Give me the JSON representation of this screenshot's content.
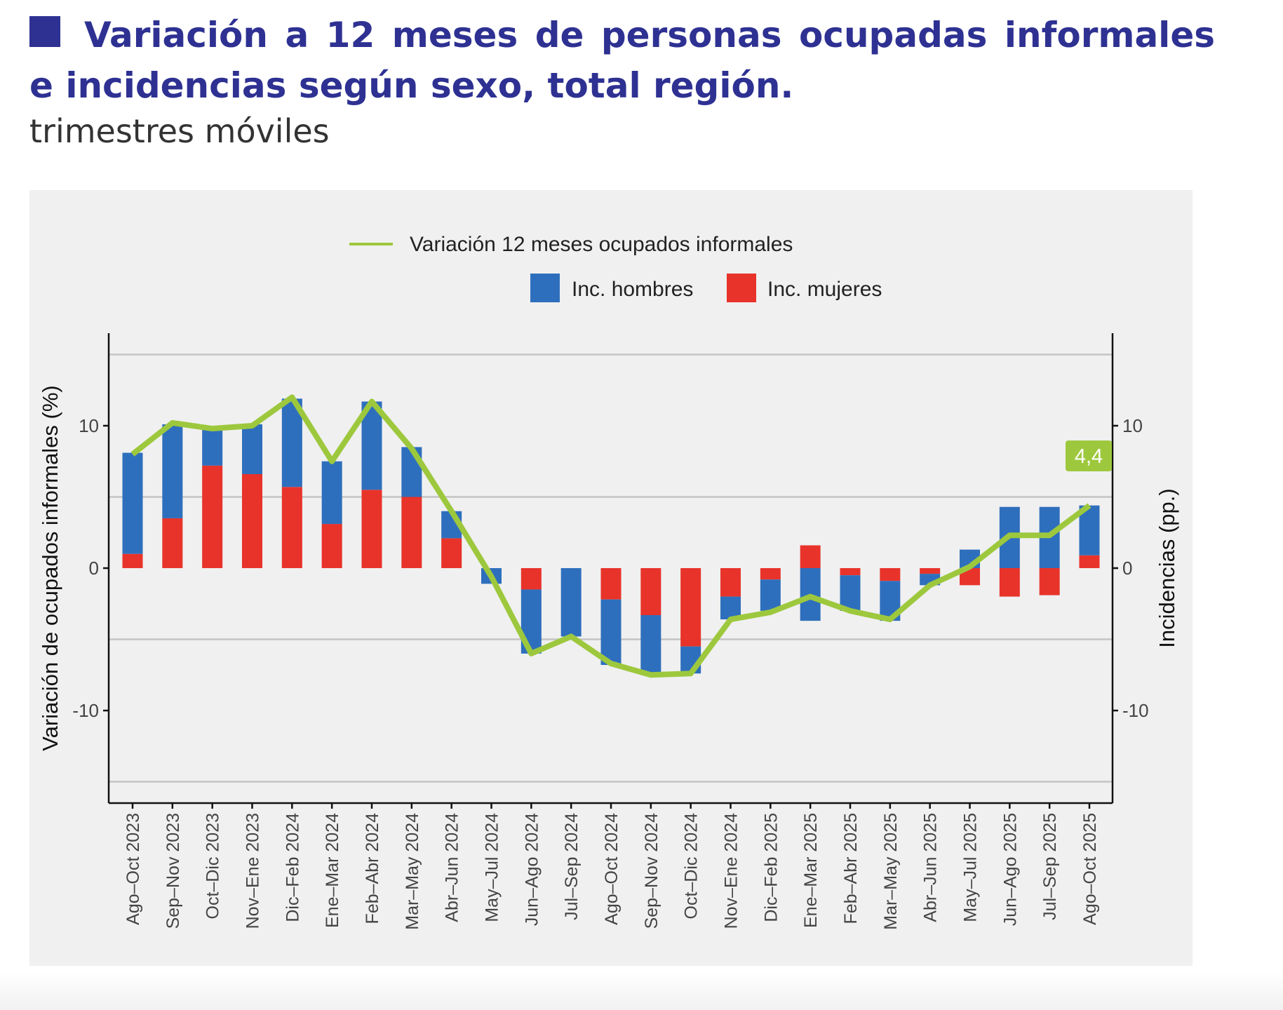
{
  "header": {
    "title": "Variación a 12 meses de personas ocupadas informales e incidencias según sexo, total región.",
    "subtitle": "trimestres móviles"
  },
  "colors": {
    "title": "#2e3192",
    "hombres": "#2e6fbd",
    "mujeres": "#e8332a",
    "line": "#9dc83d",
    "panel": "#f0f0f0"
  },
  "chart_data": {
    "type": "bar",
    "stacked": true,
    "categories": [
      "Ago–Oct 2023",
      "Sep–Nov 2023",
      "Oct–Dic 2023",
      "Nov–Ene 2023",
      "Dic–Feb 2024",
      "Ene–Mar 2024",
      "Feb–Abr 2024",
      "Mar–May 2024",
      "Abr–Jun 2024",
      "May–Jul 2024",
      "Jun–Ago 2024",
      "Jul–Sep 2024",
      "Ago–Oct 2024",
      "Sep–Nov 2024",
      "Oct–Dic 2024",
      "Nov–Ene 2024",
      "Dic–Feb 2025",
      "Ene–Mar 2025",
      "Feb–Abr 2025",
      "Mar–May 2025",
      "Abr–Jun 2025",
      "May–Jul 2025",
      "Jun–Ago 2025",
      "Jul–Sep 2025",
      "Ago–Oct 2025"
    ],
    "series": [
      {
        "name": "Inc. mujeres",
        "kind": "bar",
        "values": [
          1.0,
          3.5,
          7.2,
          6.6,
          5.7,
          3.1,
          5.5,
          5.0,
          2.1,
          0.0,
          -1.5,
          0.0,
          -2.2,
          -3.3,
          -5.5,
          -2.0,
          -0.8,
          1.6,
          -0.5,
          -0.9,
          -0.4,
          -1.2,
          -2.0,
          -1.9,
          0.9
        ]
      },
      {
        "name": "Inc. hombres",
        "kind": "bar",
        "values": [
          7.1,
          6.6,
          2.7,
          3.5,
          6.2,
          4.4,
          6.2,
          3.5,
          1.9,
          -1.1,
          -4.5,
          -4.8,
          -4.6,
          -4.2,
          -1.9,
          -1.6,
          -2.2,
          -3.7,
          -2.5,
          -2.8,
          -0.8,
          1.3,
          4.3,
          4.3,
          3.5
        ]
      },
      {
        "name": "Variación 12 meses ocupados informales",
        "kind": "line",
        "values": [
          8.0,
          10.2,
          9.8,
          10.0,
          12.0,
          7.5,
          11.7,
          8.4,
          4.0,
          -0.6,
          -6.0,
          -4.8,
          -6.7,
          -7.5,
          -7.4,
          -3.6,
          -3.1,
          -2.0,
          -3.0,
          -3.6,
          -1.2,
          0.1,
          2.3,
          2.3,
          4.4
        ]
      }
    ],
    "last_value_label": "4,4",
    "ylabel_left": "Variación de ocupados informales (%)",
    "ylabel_right": "Incidencias (pp.)",
    "xlabel": "",
    "ylim": [
      -16.5,
      16.5
    ],
    "yticks": [
      -10,
      0,
      10
    ],
    "ytick_labels": [
      "-10",
      "0",
      "10"
    ],
    "gridlines": [
      -15,
      -5,
      5,
      15
    ],
    "legend": {
      "position": "top",
      "line_label": "Variación 12 meses ocupados informales",
      "bar_labels": [
        "Inc. hombres",
        "Inc. mujeres"
      ]
    }
  }
}
